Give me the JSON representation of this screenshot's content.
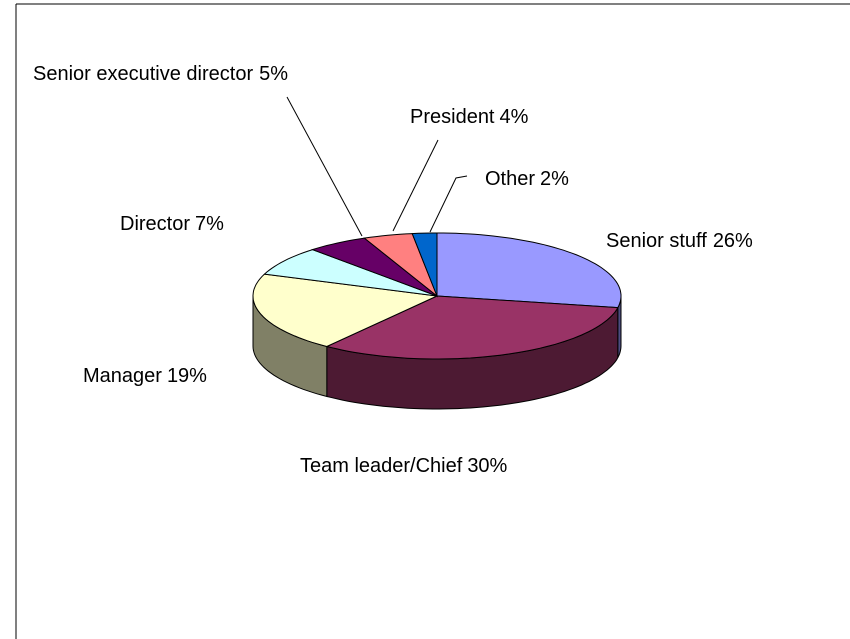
{
  "chart_data": {
    "type": "pie",
    "categories": [
      "Senior stuff",
      "Team leader/Chief",
      "Manager",
      "Director",
      "Senior executive director",
      "President",
      "Other"
    ],
    "values": [
      26,
      30,
      19,
      7,
      5,
      4,
      2
    ],
    "value_labels": [
      "26%",
      "30%",
      "19%",
      "7%",
      "5%",
      "4%",
      "2%"
    ],
    "colors": [
      "#9999ff",
      "#993366",
      "#ffffcc",
      "#ccffff",
      "#660066",
      "#ff8080",
      "#0066cc"
    ]
  }
}
